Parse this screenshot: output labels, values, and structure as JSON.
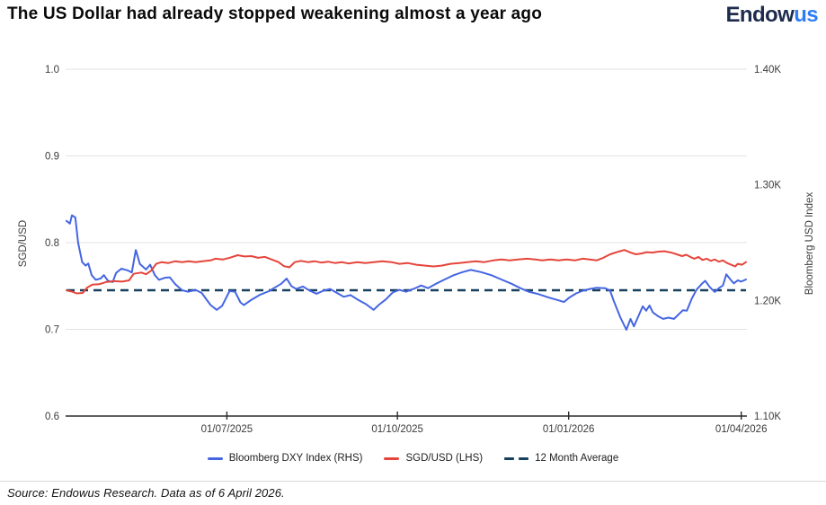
{
  "header": {
    "title": "The US Dollar had already stopped weakening almost a year ago",
    "logo_dark": "Endow",
    "logo_blue": "us"
  },
  "chart_data": {
    "type": "line",
    "title": "The US Dollar had already stopped weakening almost a year ago",
    "grid": "horizontal-only",
    "legend_position": "bottom-center",
    "left_axis": {
      "title": "SGD/USD",
      "min": 0.6,
      "max": 1.0,
      "ticks": [
        1.0,
        0.9,
        0.8,
        0.7,
        0.6
      ],
      "tick_labels": [
        "1.0",
        "0.9",
        "0.8",
        "0.7",
        "0.6"
      ]
    },
    "right_axis": {
      "title": "Bloomberg USD Index",
      "min": 1100,
      "max": 1400,
      "ticks": [
        1400,
        1300,
        1200,
        1100
      ],
      "tick_labels": [
        "1.40K",
        "1.30K",
        "1.20K",
        "1.10K"
      ]
    },
    "x_axis": {
      "tick_labels": [
        "01/07/2025",
        "01/10/2025",
        "01/01/2026",
        "01/04/2026"
      ],
      "tick_positions": [
        0.236,
        0.487,
        0.739,
        0.993
      ]
    },
    "draw_order": [
      2,
      0,
      1
    ],
    "series": [
      {
        "name": "Bloomberg DXY Index (RHS)",
        "axis": "right",
        "color": "#4566e2",
        "style": "solid",
        "points": [
          [
            0.0,
            1268.8
          ],
          [
            0.005,
            1266.5
          ],
          [
            0.008,
            1273.6
          ],
          [
            0.013,
            1271.8
          ],
          [
            0.017,
            1250.0
          ],
          [
            0.023,
            1233.1
          ],
          [
            0.028,
            1230.1
          ],
          [
            0.032,
            1232.0
          ],
          [
            0.037,
            1221.9
          ],
          [
            0.043,
            1217.8
          ],
          [
            0.05,
            1218.9
          ],
          [
            0.055,
            1221.9
          ],
          [
            0.061,
            1217.0
          ],
          [
            0.068,
            1215.9
          ],
          [
            0.073,
            1223.8
          ],
          [
            0.081,
            1227.5
          ],
          [
            0.09,
            1226.0
          ],
          [
            0.096,
            1224.1
          ],
          [
            0.102,
            1243.6
          ],
          [
            0.108,
            1231.6
          ],
          [
            0.117,
            1226.8
          ],
          [
            0.123,
            1230.9
          ],
          [
            0.13,
            1221.9
          ],
          [
            0.136,
            1217.8
          ],
          [
            0.145,
            1219.6
          ],
          [
            0.152,
            1220.0
          ],
          [
            0.16,
            1214.0
          ],
          [
            0.17,
            1208.8
          ],
          [
            0.179,
            1207.6
          ],
          [
            0.19,
            1209.1
          ],
          [
            0.199,
            1206.5
          ],
          [
            0.212,
            1196.0
          ],
          [
            0.221,
            1191.9
          ],
          [
            0.229,
            1195.3
          ],
          [
            0.24,
            1208.0
          ],
          [
            0.248,
            1207.6
          ],
          [
            0.256,
            1198.3
          ],
          [
            0.261,
            1196.0
          ],
          [
            0.272,
            1200.5
          ],
          [
            0.285,
            1205.0
          ],
          [
            0.298,
            1208.0
          ],
          [
            0.305,
            1210.6
          ],
          [
            0.316,
            1214.4
          ],
          [
            0.324,
            1218.9
          ],
          [
            0.331,
            1212.5
          ],
          [
            0.338,
            1209.9
          ],
          [
            0.348,
            1212.1
          ],
          [
            0.358,
            1208.4
          ],
          [
            0.368,
            1205.8
          ],
          [
            0.378,
            1208.4
          ],
          [
            0.388,
            1209.9
          ],
          [
            0.398,
            1206.5
          ],
          [
            0.408,
            1203.1
          ],
          [
            0.418,
            1204.6
          ],
          [
            0.428,
            1200.9
          ],
          [
            0.44,
            1197.1
          ],
          [
            0.452,
            1191.9
          ],
          [
            0.46,
            1196.4
          ],
          [
            0.47,
            1200.9
          ],
          [
            0.48,
            1206.9
          ],
          [
            0.49,
            1209.1
          ],
          [
            0.5,
            1207.6
          ],
          [
            0.512,
            1210.3
          ],
          [
            0.522,
            1212.9
          ],
          [
            0.532,
            1210.6
          ],
          [
            0.545,
            1214.8
          ],
          [
            0.558,
            1218.5
          ],
          [
            0.57,
            1221.9
          ],
          [
            0.583,
            1224.5
          ],
          [
            0.595,
            1226.4
          ],
          [
            0.61,
            1224.5
          ],
          [
            0.625,
            1221.9
          ],
          [
            0.64,
            1218.1
          ],
          [
            0.655,
            1214.4
          ],
          [
            0.668,
            1210.6
          ],
          [
            0.68,
            1207.6
          ],
          [
            0.695,
            1205.4
          ],
          [
            0.71,
            1202.4
          ],
          [
            0.724,
            1200.1
          ],
          [
            0.732,
            1198.6
          ],
          [
            0.74,
            1202.4
          ],
          [
            0.75,
            1206.1
          ],
          [
            0.76,
            1208.4
          ],
          [
            0.77,
            1209.9
          ],
          [
            0.78,
            1211.0
          ],
          [
            0.793,
            1210.6
          ],
          [
            0.8,
            1208.4
          ],
          [
            0.805,
            1200.1
          ],
          [
            0.815,
            1185.5
          ],
          [
            0.824,
            1174.6
          ],
          [
            0.83,
            1184.0
          ],
          [
            0.835,
            1177.6
          ],
          [
            0.842,
            1187.0
          ],
          [
            0.848,
            1194.9
          ],
          [
            0.853,
            1191.1
          ],
          [
            0.858,
            1195.6
          ],
          [
            0.863,
            1189.6
          ],
          [
            0.87,
            1186.6
          ],
          [
            0.878,
            1184.0
          ],
          [
            0.886,
            1185.1
          ],
          [
            0.894,
            1184.0
          ],
          [
            0.9,
            1187.4
          ],
          [
            0.907,
            1191.5
          ],
          [
            0.913,
            1191.1
          ],
          [
            0.92,
            1201.3
          ],
          [
            0.927,
            1209.1
          ],
          [
            0.935,
            1214.4
          ],
          [
            0.94,
            1217.0
          ],
          [
            0.947,
            1211.4
          ],
          [
            0.954,
            1207.3
          ],
          [
            0.96,
            1210.6
          ],
          [
            0.966,
            1212.9
          ],
          [
            0.971,
            1222.6
          ],
          [
            0.977,
            1218.1
          ],
          [
            0.982,
            1214.8
          ],
          [
            0.988,
            1217.4
          ],
          [
            0.993,
            1216.3
          ],
          [
            1.0,
            1218.1
          ]
        ]
      },
      {
        "name": "SGD/USD (LHS)",
        "axis": "left",
        "color": "#e5453b",
        "style": "solid",
        "points": [
          [
            0.0,
            0.745
          ],
          [
            0.008,
            0.7435
          ],
          [
            0.015,
            0.7415
          ],
          [
            0.024,
            0.742
          ],
          [
            0.03,
            0.748
          ],
          [
            0.038,
            0.7515
          ],
          [
            0.048,
            0.752
          ],
          [
            0.058,
            0.7545
          ],
          [
            0.07,
            0.7555
          ],
          [
            0.082,
            0.755
          ],
          [
            0.092,
            0.7565
          ],
          [
            0.099,
            0.764
          ],
          [
            0.11,
            0.7655
          ],
          [
            0.117,
            0.7635
          ],
          [
            0.125,
            0.768
          ],
          [
            0.132,
            0.7755
          ],
          [
            0.14,
            0.7775
          ],
          [
            0.15,
            0.7765
          ],
          [
            0.16,
            0.7785
          ],
          [
            0.17,
            0.7775
          ],
          [
            0.18,
            0.7785
          ],
          [
            0.19,
            0.7775
          ],
          [
            0.2,
            0.7785
          ],
          [
            0.212,
            0.7795
          ],
          [
            0.219,
            0.7815
          ],
          [
            0.23,
            0.7805
          ],
          [
            0.24,
            0.7825
          ],
          [
            0.252,
            0.7855
          ],
          [
            0.262,
            0.784
          ],
          [
            0.272,
            0.7845
          ],
          [
            0.282,
            0.7825
          ],
          [
            0.292,
            0.7835
          ],
          [
            0.302,
            0.7805
          ],
          [
            0.312,
            0.7775
          ],
          [
            0.32,
            0.7728
          ],
          [
            0.328,
            0.7715
          ],
          [
            0.336,
            0.7775
          ],
          [
            0.345,
            0.779
          ],
          [
            0.355,
            0.7775
          ],
          [
            0.365,
            0.7785
          ],
          [
            0.375,
            0.777
          ],
          [
            0.385,
            0.778
          ],
          [
            0.395,
            0.7765
          ],
          [
            0.405,
            0.7775
          ],
          [
            0.415,
            0.776
          ],
          [
            0.428,
            0.7775
          ],
          [
            0.44,
            0.7765
          ],
          [
            0.452,
            0.7775
          ],
          [
            0.465,
            0.7785
          ],
          [
            0.478,
            0.7775
          ],
          [
            0.49,
            0.7755
          ],
          [
            0.502,
            0.7765
          ],
          [
            0.515,
            0.7745
          ],
          [
            0.528,
            0.7735
          ],
          [
            0.54,
            0.7725
          ],
          [
            0.552,
            0.7735
          ],
          [
            0.565,
            0.7755
          ],
          [
            0.578,
            0.7765
          ],
          [
            0.59,
            0.7775
          ],
          [
            0.602,
            0.7785
          ],
          [
            0.615,
            0.7775
          ],
          [
            0.628,
            0.7795
          ],
          [
            0.64,
            0.7805
          ],
          [
            0.652,
            0.7795
          ],
          [
            0.665,
            0.7805
          ],
          [
            0.678,
            0.7815
          ],
          [
            0.69,
            0.7805
          ],
          [
            0.7,
            0.7795
          ],
          [
            0.712,
            0.7805
          ],
          [
            0.724,
            0.7795
          ],
          [
            0.736,
            0.7805
          ],
          [
            0.748,
            0.7795
          ],
          [
            0.76,
            0.7815
          ],
          [
            0.77,
            0.7805
          ],
          [
            0.78,
            0.7795
          ],
          [
            0.79,
            0.7825
          ],
          [
            0.8,
            0.7865
          ],
          [
            0.812,
            0.7895
          ],
          [
            0.821,
            0.7915
          ],
          [
            0.83,
            0.7885
          ],
          [
            0.838,
            0.7865
          ],
          [
            0.846,
            0.7875
          ],
          [
            0.854,
            0.789
          ],
          [
            0.862,
            0.7885
          ],
          [
            0.87,
            0.7895
          ],
          [
            0.88,
            0.79
          ],
          [
            0.89,
            0.7885
          ],
          [
            0.898,
            0.7865
          ],
          [
            0.906,
            0.7845
          ],
          [
            0.912,
            0.786
          ],
          [
            0.918,
            0.7835
          ],
          [
            0.924,
            0.7815
          ],
          [
            0.93,
            0.7835
          ],
          [
            0.936,
            0.78
          ],
          [
            0.942,
            0.7815
          ],
          [
            0.948,
            0.779
          ],
          [
            0.954,
            0.7805
          ],
          [
            0.96,
            0.778
          ],
          [
            0.966,
            0.7795
          ],
          [
            0.972,
            0.7765
          ],
          [
            0.978,
            0.7745
          ],
          [
            0.984,
            0.7725
          ],
          [
            0.988,
            0.7755
          ],
          [
            0.994,
            0.7745
          ],
          [
            1.0,
            0.7775
          ]
        ]
      },
      {
        "name": "12 Month Average",
        "axis": "right",
        "color": "#17405f",
        "style": "dashed",
        "points": [
          [
            0.0,
            1208.8
          ],
          [
            1.0,
            1208.8
          ]
        ]
      }
    ]
  },
  "footer": {
    "source": "Source: Endowus Research. Data as of 6 April 2026."
  }
}
